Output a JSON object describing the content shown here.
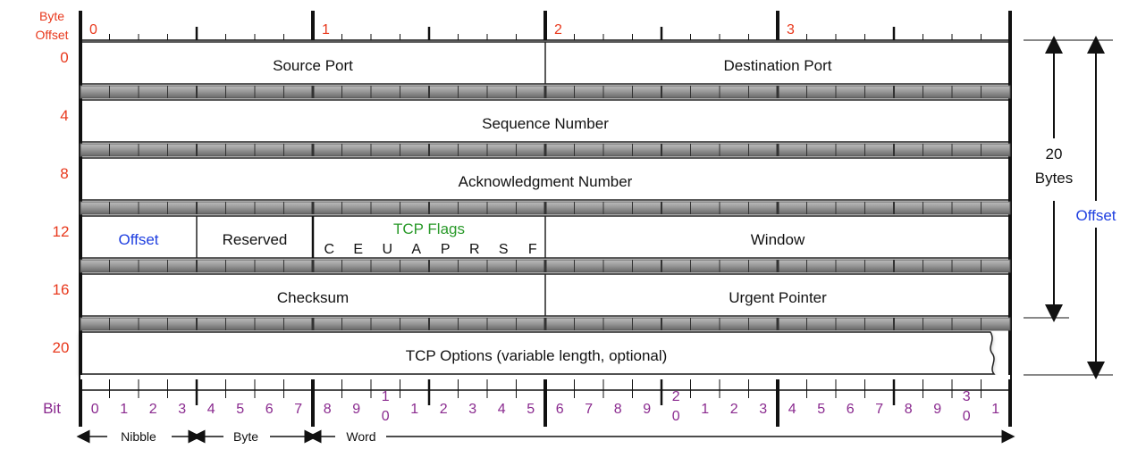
{
  "header": {
    "byte_offset_label_1": "Byte",
    "byte_offset_label_2": "Offset",
    "byte_numbers": [
      "0",
      "1",
      "2",
      "3"
    ]
  },
  "rows": [
    {
      "offset": "0",
      "fields": [
        "Source Port",
        "Destination Port"
      ]
    },
    {
      "offset": "4",
      "fields": [
        "Sequence Number"
      ]
    },
    {
      "offset": "8",
      "fields": [
        "Acknowledgment Number"
      ]
    },
    {
      "offset": "12",
      "fields": [
        "Offset",
        "Reserved",
        "TCP Flags",
        "Window"
      ]
    },
    {
      "offset": "16",
      "fields": [
        "Checksum",
        "Urgent Pointer"
      ]
    },
    {
      "offset": "20",
      "fields": [
        "TCP Options (variable length, optional)"
      ]
    }
  ],
  "flags": [
    "C",
    "E",
    "U",
    "A",
    "P",
    "R",
    "S",
    "F"
  ],
  "bit_label": "Bit",
  "bits": [
    "0",
    "1",
    "2",
    "3",
    "4",
    "5",
    "6",
    "7",
    "8",
    "9",
    "1|0",
    "1",
    "2",
    "3",
    "4",
    "5",
    "6",
    "7",
    "8",
    "9",
    "2|0",
    "1",
    "2",
    "3",
    "4",
    "5",
    "6",
    "7",
    "8",
    "9",
    "3|0",
    "1"
  ],
  "units": {
    "nibble": "Nibble",
    "byte": "Byte",
    "word": "Word"
  },
  "right": {
    "size_value": "20",
    "size_unit": "Bytes",
    "offset_label": "Offset"
  },
  "colors": {
    "offset_numbers": "#e8391d",
    "bit_numbers": "#8a2a8f",
    "offset_field": "#1f3fe0",
    "flags_title": "#2a9a2a"
  }
}
